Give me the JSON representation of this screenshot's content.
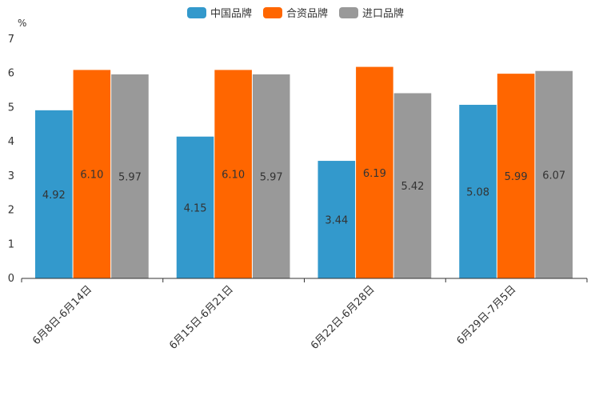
{
  "chart_data": {
    "type": "bar",
    "title": "",
    "xlabel": "",
    "ylabel": "%",
    "ylim": [
      0,
      7
    ],
    "yticks": [
      0,
      1,
      2,
      3,
      4,
      5,
      6,
      7
    ],
    "grid": false,
    "legend_position": "top-center",
    "categories": [
      "6月8日-6月14日",
      "6月15日-6月21日",
      "6月22日-6月28日",
      "6月29日-7月5日"
    ],
    "series": [
      {
        "name": "中国品牌",
        "color": "#3399cc",
        "values": [
          4.92,
          4.15,
          3.44,
          5.08
        ],
        "labels": [
          "4.92",
          "4.15",
          "3.44",
          "5.08"
        ]
      },
      {
        "name": "合资品牌",
        "color": "#ff6600",
        "values": [
          6.1,
          6.1,
          6.19,
          5.99
        ],
        "labels": [
          "6.10",
          "6.10",
          "6.19",
          "5.99"
        ]
      },
      {
        "name": "进口品牌",
        "color": "#999999",
        "values": [
          5.97,
          5.97,
          5.42,
          6.07
        ],
        "labels": [
          "5.97",
          "5.97",
          "5.42",
          "6.07"
        ]
      }
    ]
  }
}
